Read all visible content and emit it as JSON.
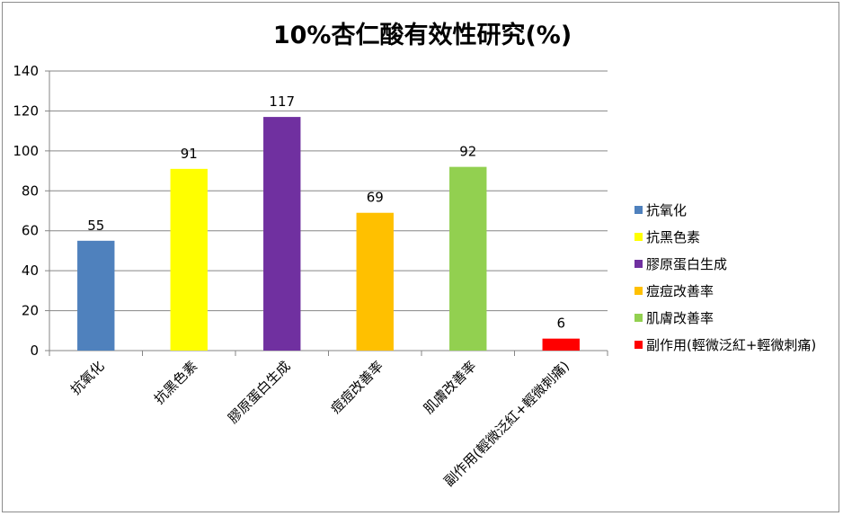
{
  "chart_data": {
    "type": "bar",
    "title": "10%杏仁酸有效性研究(%)",
    "categories": [
      "抗氧化",
      "抗黑色素",
      "膠原蛋白生成",
      "痘痘改善率",
      "肌膚改善率",
      "副作用(輕微泛紅+輕微刺痛)"
    ],
    "values": [
      55,
      91,
      117,
      69,
      92,
      6
    ],
    "colors": [
      "#4f81bd",
      "#ffff00",
      "#7030a0",
      "#ffc000",
      "#92d050",
      "#ff0000"
    ],
    "ylim": [
      0,
      140
    ],
    "yticks": [
      0,
      20,
      40,
      60,
      80,
      100,
      120,
      140
    ],
    "grid": true,
    "legend_position": "right"
  }
}
